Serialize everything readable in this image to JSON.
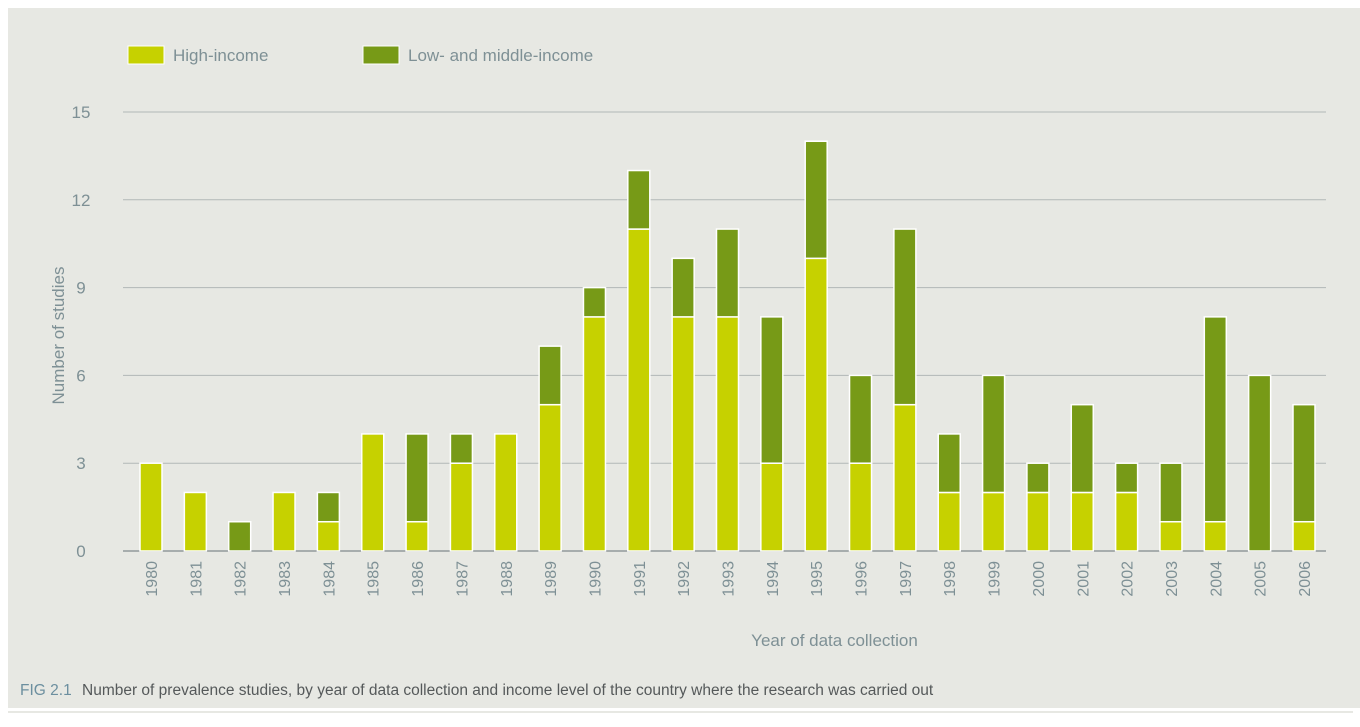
{
  "colors": {
    "high_income": "#c6d100",
    "low_middle_income": "#779a17",
    "axis_text": "#7e9095",
    "grid": "#b2b7b7"
  },
  "caption": {
    "label": "FIG 2.1",
    "text": "Number of prevalence studies, by year of data collection and income level of the country where the research was carried out"
  },
  "chart_data": {
    "type": "bar",
    "stacked": true,
    "categories": [
      "1980",
      "1981",
      "1982",
      "1983",
      "1984",
      "1985",
      "1986",
      "1987",
      "1988",
      "1989",
      "1990",
      "1991",
      "1992",
      "1993",
      "1994",
      "1995",
      "1996",
      "1997",
      "1998",
      "1999",
      "2000",
      "2001",
      "2002",
      "2003",
      "2004",
      "2005",
      "2006"
    ],
    "series": [
      {
        "name": "High-income",
        "color": "#c6d100",
        "values": [
          3,
          2,
          0,
          2,
          1,
          4,
          1,
          3,
          4,
          5,
          8,
          11,
          8,
          8,
          3,
          10,
          3,
          5,
          2,
          2,
          2,
          2,
          2,
          1,
          1,
          0,
          1
        ]
      },
      {
        "name": "Low- and middle-income",
        "color": "#779a17",
        "values": [
          0,
          0,
          1,
          0,
          1,
          0,
          3,
          1,
          0,
          2,
          1,
          2,
          2,
          3,
          5,
          4,
          3,
          6,
          2,
          4,
          1,
          3,
          1,
          2,
          7,
          6,
          4
        ]
      }
    ],
    "xlabel": "Year of data collection",
    "ylabel": "Number of studies",
    "ylim": [
      0,
      15
    ],
    "yticks": [
      0,
      3,
      6,
      9,
      12,
      15
    ],
    "grid": true,
    "legend_position": "top-left"
  }
}
